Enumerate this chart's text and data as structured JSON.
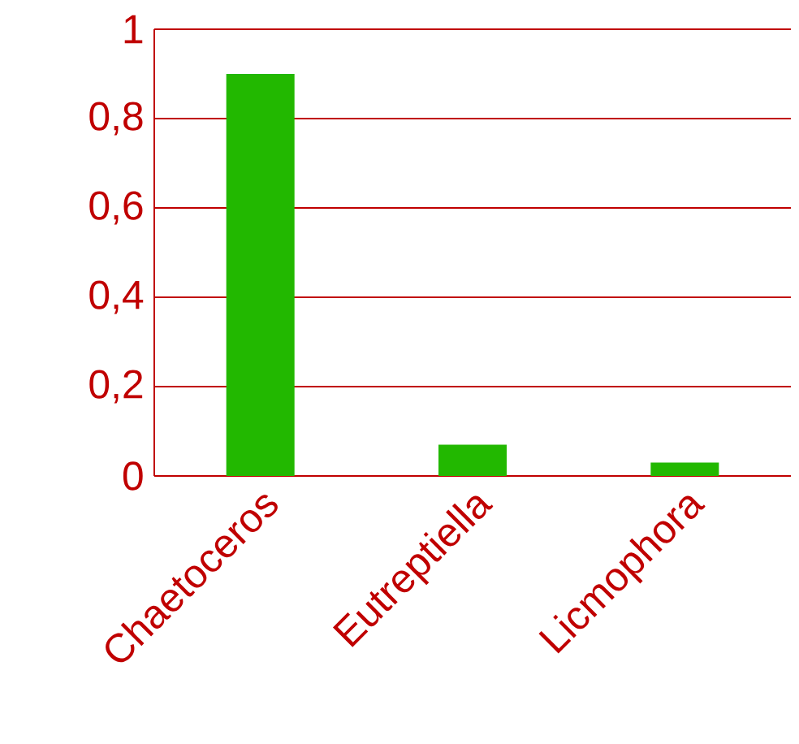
{
  "chart_data": {
    "type": "bar",
    "categories": [
      "Chaetoceros",
      "Eutreptiella",
      "Licmophora"
    ],
    "values": [
      0.9,
      0.07,
      0.03
    ],
    "color": "#22b800",
    "ylim": [
      0,
      1
    ],
    "yticks": [
      0,
      {
        "value": 0.2,
        "label": "0,2"
      },
      {
        "value": 0.4,
        "label": "0,4"
      },
      {
        "value": 0.6,
        "label": "0,6"
      },
      {
        "value": 0.8,
        "label": "0,8"
      },
      1
    ],
    "grid": "y"
  }
}
